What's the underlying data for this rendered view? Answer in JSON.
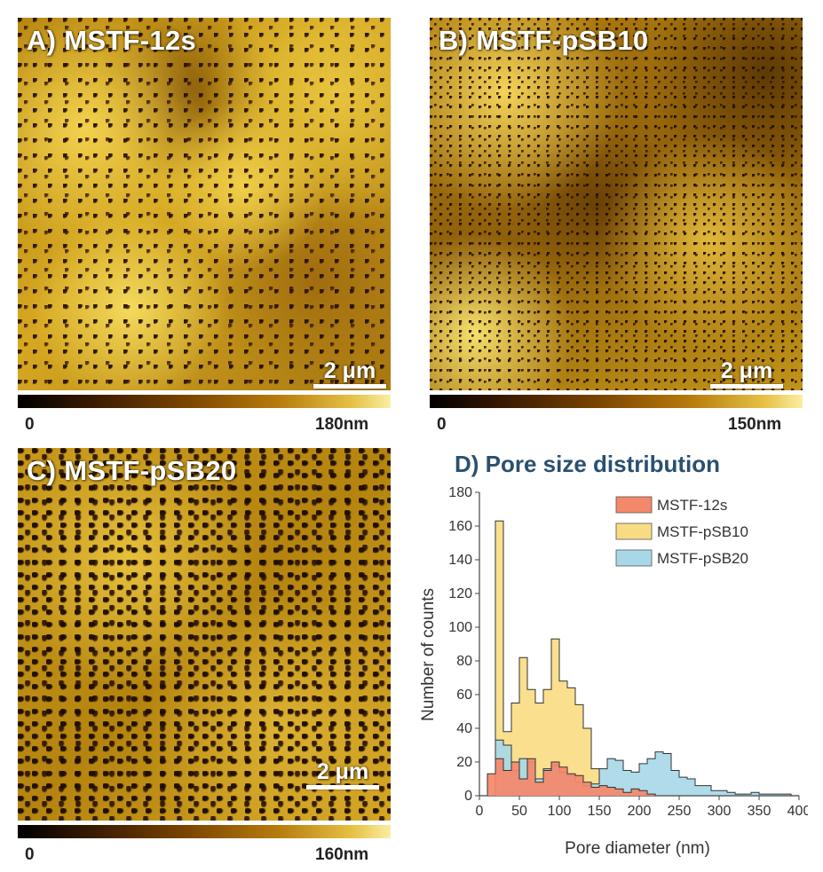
{
  "panels": {
    "a": {
      "label": "A) MSTF-12s",
      "scale": "2 μm",
      "cb_min": "0",
      "cb_max": "180nm"
    },
    "b": {
      "label": "B) MSTF-pSB10",
      "scale": "2 μm",
      "cb_min": "0",
      "cb_max": "150nm"
    },
    "c": {
      "label": "C) MSTF-pSB20",
      "scale": "2 μm",
      "cb_min": "0",
      "cb_max": "160nm"
    }
  },
  "chart_data": {
    "type": "bar",
    "subtype": "step-histogram",
    "title": "D) Pore size distribution",
    "xlabel": "Pore diameter (nm)",
    "ylabel": "Number of counts",
    "xlim": [
      0,
      400
    ],
    "ylim": [
      0,
      180
    ],
    "xticks": [
      0,
      50,
      100,
      150,
      200,
      250,
      300,
      350,
      400
    ],
    "yticks": [
      0,
      20,
      40,
      60,
      80,
      100,
      120,
      140,
      160,
      180
    ],
    "bin_width": 10,
    "bin_starts": [
      10,
      20,
      30,
      40,
      50,
      60,
      70,
      80,
      90,
      100,
      110,
      120,
      130,
      140,
      150,
      160,
      170,
      180,
      190,
      200,
      210,
      220,
      230,
      240,
      250,
      260,
      270,
      280,
      290,
      300,
      310,
      320,
      330,
      340,
      350,
      360,
      370,
      380,
      390
    ],
    "legend_position": "top-right",
    "series": [
      {
        "name": "MSTF-pSB10",
        "fill": "#f8dc84",
        "values": [
          0,
          163,
          38,
          55,
          82,
          63,
          55,
          63,
          93,
          68,
          64,
          54,
          40,
          16,
          0,
          0,
          0,
          0,
          0,
          0,
          0,
          0,
          0,
          0,
          0,
          0,
          0,
          0,
          0,
          0,
          0,
          0,
          0,
          0,
          0,
          0,
          0,
          0,
          0
        ]
      },
      {
        "name": "MSTF-pSB20",
        "fill": "#a8d8e8",
        "values": [
          0,
          33,
          30,
          15,
          22,
          20,
          10,
          16,
          18,
          14,
          12,
          8,
          6,
          7,
          16,
          22,
          21,
          15,
          14,
          19,
          22,
          26,
          25,
          15,
          11,
          10,
          6,
          6,
          3,
          3,
          2,
          1,
          1,
          2,
          1,
          1,
          1,
          1,
          0
        ]
      },
      {
        "name": "MSTF-12s",
        "fill": "#f4886a",
        "values": [
          13,
          22,
          15,
          20,
          10,
          22,
          8,
          15,
          20,
          17,
          13,
          12,
          8,
          5,
          6,
          5,
          4,
          2,
          4,
          3,
          1,
          0,
          0,
          0,
          0,
          0,
          0,
          0,
          0,
          0,
          0,
          0,
          0,
          0,
          0,
          0,
          0,
          0,
          0
        ]
      }
    ]
  }
}
